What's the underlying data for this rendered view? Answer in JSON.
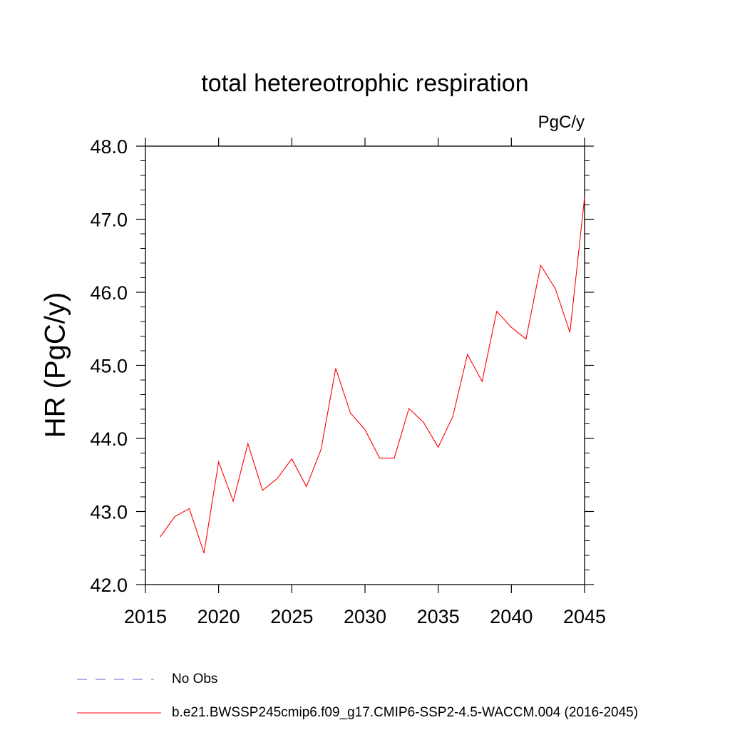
{
  "chart_data": {
    "type": "line",
    "title": "total hetereotrophic respiration",
    "units_label": "PgC/y",
    "ylabel": "HR  (PgC/y)",
    "xlabel": "",
    "xlim": [
      2015,
      2045
    ],
    "ylim": [
      42.0,
      48.0
    ],
    "x_ticks": [
      2015,
      2020,
      2025,
      2030,
      2035,
      2040,
      2045
    ],
    "x_tick_labels": [
      "2015",
      "2020",
      "2025",
      "2030",
      "2035",
      "2040",
      "2045"
    ],
    "y_ticks": [
      42.0,
      43.0,
      44.0,
      45.0,
      46.0,
      47.0,
      48.0
    ],
    "y_tick_labels": [
      "42.0",
      "43.0",
      "44.0",
      "45.0",
      "46.0",
      "47.0",
      "48.0"
    ],
    "grid": false,
    "legend_placement": "bottom",
    "series": [
      {
        "name": "b.e21.BWSSP245cmip6.f09_g17.CMIP6-SSP2-4.5-WACCM.004 (2016-2045)",
        "color": "#ff0000",
        "x": [
          2016,
          2017,
          2018,
          2019,
          2020,
          2021,
          2022,
          2023,
          2024,
          2025,
          2026,
          2027,
          2028,
          2029,
          2030,
          2031,
          2032,
          2033,
          2034,
          2035,
          2036,
          2037,
          2038,
          2039,
          2040,
          2041,
          2042,
          2043,
          2044,
          2045
        ],
        "values": [
          42.65,
          42.93,
          43.04,
          42.43,
          43.68,
          43.14,
          43.93,
          43.29,
          43.45,
          43.72,
          43.34,
          43.85,
          44.96,
          44.35,
          44.12,
          43.73,
          43.73,
          44.41,
          44.22,
          43.88,
          44.3,
          45.15,
          44.78,
          45.74,
          45.52,
          45.36,
          46.37,
          46.05,
          45.45,
          47.3
        ]
      }
    ],
    "legend": [
      {
        "label": "No Obs",
        "color": "#6a5acd",
        "style": "dashed"
      },
      {
        "label": "b.e21.BWSSP245cmip6.f09_g17.CMIP6-SSP2-4.5-WACCM.004 (2016-2045)",
        "color": "#ff0000",
        "style": "solid"
      }
    ]
  }
}
